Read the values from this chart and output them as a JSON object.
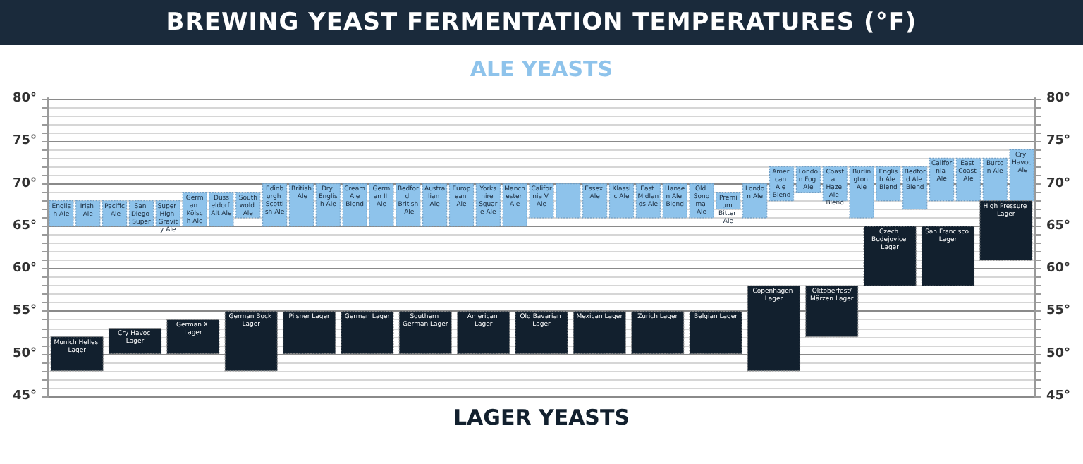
{
  "chart_data": [
    {
      "type": "bar",
      "title": "BREWING YEAST FERMENTATION TEMPERATURES (°F)",
      "categories": [
        "English Ale",
        "Irish Ale",
        "Pacific Ale",
        "San Diego Super",
        "Super High Gravity Ale",
        "German Kölsch Ale",
        "Düsseldorf Alt Ale",
        "Southwold Ale",
        "Edinburgh Scottish Ale",
        "British Ale",
        "Dry English Ale",
        "Cream Ale Blend",
        "German II Ale",
        "Bedford British Ale",
        "Australian Ale",
        "European Ale",
        "Yorkshire Square Ale",
        "Manchester Ale",
        "California V Ale",
        null,
        "Essex Ale",
        "Klassic Ale",
        "East Midlands Ale",
        "Hansen Ale Blend",
        "Old Sonoma Ale",
        "Premium Bitter Ale",
        "London Ale",
        "American Ale Blend",
        "London Fog Ale",
        "Coastal Haze Ale Blend",
        "Burlington Ale",
        "English Ale Blend",
        "Bedford Ale Blend",
        "California Ale",
        "East Coast Ale",
        "Burton Ale",
        "Cry Havoc Ale"
      ],
      "series": [
        {
          "name": "ALE YEASTS",
          "color": "#8ec3eb",
          "values": [
            3,
            3,
            3,
            3,
            3,
            4,
            4,
            3,
            5,
            5,
            5,
            5,
            5,
            5,
            5,
            5,
            5,
            5,
            4,
            4,
            4,
            4,
            4,
            4,
            4,
            2,
            4,
            4,
            3,
            4,
            6,
            4,
            5,
            5,
            5,
            5,
            6
          ],
          "base": [
            65,
            65,
            65,
            65,
            65,
            65,
            65,
            66,
            65,
            65,
            65,
            65,
            65,
            65,
            65,
            65,
            65,
            65,
            66,
            66,
            66,
            66,
            66,
            66,
            66,
            67,
            66,
            68,
            69,
            68,
            66,
            68,
            67,
            68,
            68,
            68,
            68
          ]
        }
      ],
      "ylim": [
        45,
        80
      ],
      "yticks": [
        {
          "value": 45,
          "label": "45°"
        },
        {
          "value": 46,
          "label": null
        },
        {
          "value": 47,
          "label": null
        },
        {
          "value": 48,
          "label": null
        },
        {
          "value": 49,
          "label": null
        },
        {
          "value": 50,
          "label": "50°"
        },
        {
          "value": 51,
          "label": null
        },
        {
          "value": 52,
          "label": null
        },
        {
          "value": 53,
          "label": null
        },
        {
          "value": 54,
          "label": null
        },
        {
          "value": 55,
          "label": "55°"
        },
        {
          "value": 56,
          "label": null
        },
        {
          "value": 57,
          "label": null
        },
        {
          "value": 58,
          "label": null
        },
        {
          "value": 59,
          "label": null
        },
        {
          "value": 60,
          "label": "60°"
        },
        {
          "value": 61,
          "label": null
        },
        {
          "value": 62,
          "label": null
        },
        {
          "value": 63,
          "label": null
        },
        {
          "value": 64,
          "label": null
        },
        {
          "value": 65,
          "label": "65°"
        },
        {
          "value": 66,
          "label": null
        },
        {
          "value": 67,
          "label": null
        },
        {
          "value": 68,
          "label": null
        },
        {
          "value": 69,
          "label": null
        },
        {
          "value": 70,
          "label": "70°"
        },
        {
          "value": 71,
          "label": null
        },
        {
          "value": 72,
          "label": null
        },
        {
          "value": 73,
          "label": null
        },
        {
          "value": 74,
          "label": null
        },
        {
          "value": 75,
          "label": "75°"
        },
        {
          "value": 76,
          "label": null
        },
        {
          "value": 77,
          "label": null
        },
        {
          "value": 78,
          "label": null
        },
        {
          "value": 79,
          "label": null
        },
        {
          "value": 80,
          "label": "80°"
        }
      ],
      "y2lim": [
        45,
        80
      ],
      "y2ticks": [
        {
          "value": 45,
          "label": "45°"
        },
        {
          "value": 46,
          "label": null
        },
        {
          "value": 47,
          "label": null
        },
        {
          "value": 48,
          "label": null
        },
        {
          "value": 49,
          "label": null
        },
        {
          "value": 50,
          "label": "50°"
        },
        {
          "value": 51,
          "label": null
        },
        {
          "value": 52,
          "label": null
        },
        {
          "value": 53,
          "label": null
        },
        {
          "value": 54,
          "label": null
        },
        {
          "value": 55,
          "label": "55°"
        },
        {
          "value": 56,
          "label": null
        },
        {
          "value": 57,
          "label": null
        },
        {
          "value": 58,
          "label": null
        },
        {
          "value": 59,
          "label": null
        },
        {
          "value": 60,
          "label": "60°"
        },
        {
          "value": 61,
          "label": null
        },
        {
          "value": 62,
          "label": null
        },
        {
          "value": 63,
          "label": null
        },
        {
          "value": 64,
          "label": null
        },
        {
          "value": 65,
          "label": "65°"
        },
        {
          "value": 66,
          "label": null
        },
        {
          "value": 67,
          "label": null
        },
        {
          "value": 68,
          "label": null
        },
        {
          "value": 69,
          "label": null
        },
        {
          "value": 70,
          "label": "70°"
        },
        {
          "value": 71,
          "label": null
        },
        {
          "value": 72,
          "label": null
        },
        {
          "value": 73,
          "label": null
        },
        {
          "value": 74,
          "label": null
        },
        {
          "value": 75,
          "label": "75°"
        },
        {
          "value": 76,
          "label": null
        },
        {
          "value": 77,
          "label": null
        },
        {
          "value": 78,
          "label": null
        },
        {
          "value": 79,
          "label": null
        },
        {
          "value": 80,
          "label": "80°"
        }
      ],
      "grid": "y",
      "tick_labels": "y"
    },
    {
      "type": "bar",
      "categories": [
        "Munich Helles Lager",
        "Cry Havoc Lager",
        "German X Lager",
        "German Bock Lager",
        "Pilsner Lager",
        "German Lager",
        "Southern German Lager",
        "American Lager",
        "Old Bavarian Lager",
        "Mexican Lager",
        "Zurich Lager",
        "Belgian Lager",
        "Copenhagen Lager",
        "Oktoberfest/Märzen Lager",
        "Czech Budejovice Lager",
        "San Francisco Lager",
        "High Pressure Lager"
      ],
      "series": [
        {
          "name": "LAGER YEASTS",
          "color": "#12202e",
          "values": [
            4,
            3,
            4,
            7,
            5,
            5,
            5,
            5,
            5,
            5,
            5,
            5,
            10,
            6,
            7,
            7,
            7
          ],
          "base": [
            48,
            50,
            50,
            48,
            50,
            50,
            50,
            50,
            50,
            50,
            50,
            50,
            48,
            52,
            58,
            58,
            61
          ]
        }
      ],
      "ylim": [
        45,
        80
      ],
      "tick_labels": false
    }
  ]
}
